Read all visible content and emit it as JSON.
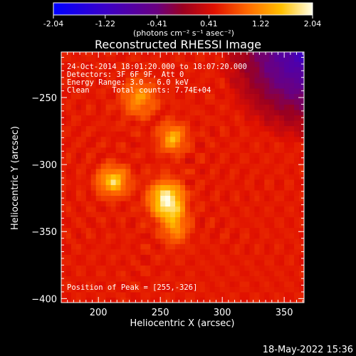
{
  "colorbar": {
    "ticks": [
      "-2.04",
      "-1.22",
      "-0.41",
      "0.41",
      "1.22",
      "2.04"
    ],
    "unit_label": "(photons cm⁻² s⁻¹ asec⁻²)",
    "range": [
      -2.04,
      2.04
    ]
  },
  "annotations": {
    "time_range": "24-Oct-2014 18:01:20.000 to 18:07:20.000",
    "detectors": "Detectors: 3F 6F 9F, Att 0",
    "energy": "Energy Range: 3.0 - 6.0 keV",
    "method_totals": "Clean     Total counts: 7.74E+04",
    "peak": "Position of Peak = [255,-326]"
  },
  "timestamp": "18-May-2022 15:36",
  "chart_data": {
    "type": "heatmap",
    "title": "Reconstructed RHESSI Image",
    "xlabel": "Heliocentric X (arcsec)",
    "ylabel": "Heliocentric Y (arcsec)",
    "xlim": [
      170,
      366
    ],
    "ylim": [
      -403,
      -216
    ],
    "xticks": [
      200,
      250,
      300,
      350
    ],
    "yticks": [
      -250,
      -300,
      -350,
      -400
    ],
    "xtick_labels": [
      "200",
      "250",
      "300",
      "350"
    ],
    "ytick_labels": [
      "−250",
      "−300",
      "−350",
      "−400"
    ],
    "colormap": "hot",
    "sources": [
      {
        "x": 233,
        "y": -250,
        "intensity": 1.3,
        "sx": 9,
        "sy": 9
      },
      {
        "x": 260,
        "y": -280,
        "intensity": 1.5,
        "sx": 7,
        "sy": 7
      },
      {
        "x": 212,
        "y": -312,
        "intensity": 1.7,
        "sx": 8,
        "sy": 7
      },
      {
        "x": 255,
        "y": -326,
        "intensity": 2.04,
        "sx": 9,
        "sy": 9
      },
      {
        "x": 262,
        "y": -345,
        "intensity": 1.3,
        "sx": 7,
        "sy": 9
      }
    ],
    "peak": [
      255,
      -326
    ]
  }
}
